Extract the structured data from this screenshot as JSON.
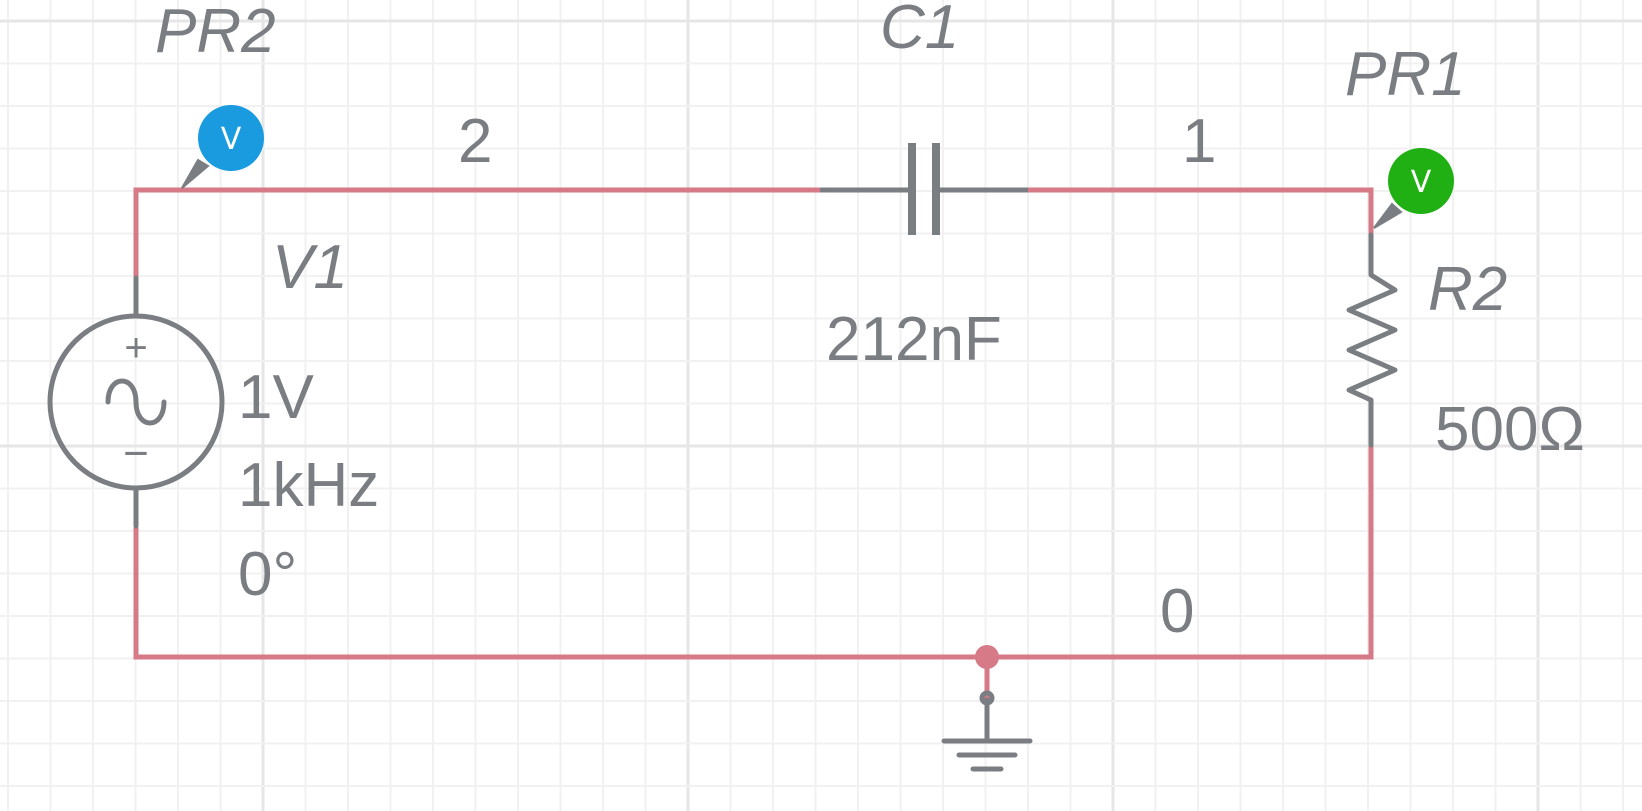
{
  "colors": {
    "wire": "#d57a86",
    "component": "#7a7d82",
    "grid_minor": "#f1f1f1",
    "grid_major": "#e6e6e6",
    "probe_pr2": "#1a9be0",
    "probe_pr1": "#20b014"
  },
  "components": {
    "v1": {
      "ref": "V1",
      "amplitude": "1V",
      "frequency": "1kHz",
      "phase": "0°",
      "plus": "+",
      "minus": "−",
      "symbol": "~"
    },
    "c1": {
      "ref": "C1",
      "value": "212nF"
    },
    "r2": {
      "ref": "R2",
      "value": "500Ω"
    },
    "pr1": {
      "ref": "PR1",
      "glyph": "V"
    },
    "pr2": {
      "ref": "PR2",
      "glyph": "V"
    }
  },
  "nets": {
    "n2": "2",
    "n1": "1",
    "n0": "0"
  }
}
